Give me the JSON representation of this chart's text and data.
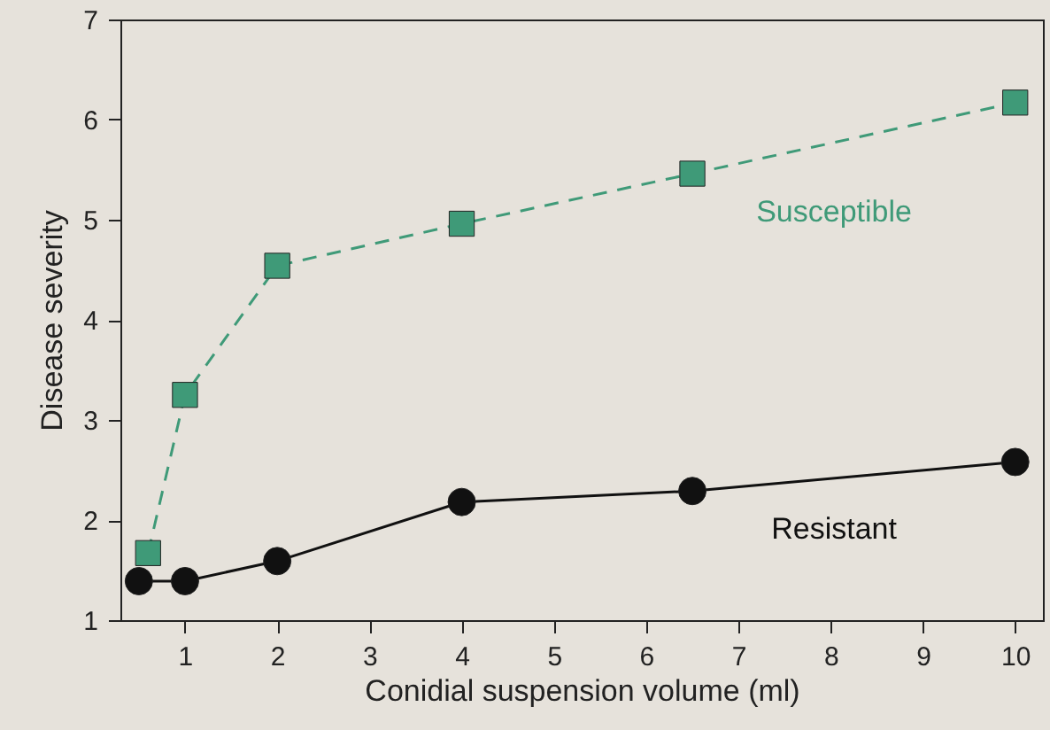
{
  "chart_data": {
    "type": "line",
    "xlabel": "Conidial suspension volume (ml)",
    "ylabel": "Disease severity",
    "xlim": [
      0.3,
      10.3
    ],
    "ylim": [
      1,
      7
    ],
    "xticks": [
      1,
      2,
      3,
      4,
      5,
      6,
      7,
      8,
      9,
      10
    ],
    "yticks": [
      1,
      2,
      3,
      4,
      5,
      6,
      7
    ],
    "grid": false,
    "series": [
      {
        "name": "Susceptible",
        "color": "#3f9a78",
        "line_style": "dashed",
        "marker": "square",
        "x": [
          0.6,
          1,
          2,
          4,
          6.5,
          10
        ],
        "values": [
          1.67,
          3.25,
          4.54,
          4.96,
          5.46,
          6.17
        ]
      },
      {
        "name": "Resistant",
        "color": "#111111",
        "line_style": "solid",
        "marker": "circle",
        "x": [
          0.5,
          1,
          2,
          4,
          6.5,
          10
        ],
        "values": [
          1.39,
          1.39,
          1.59,
          2.18,
          2.29,
          2.58
        ]
      }
    ]
  }
}
